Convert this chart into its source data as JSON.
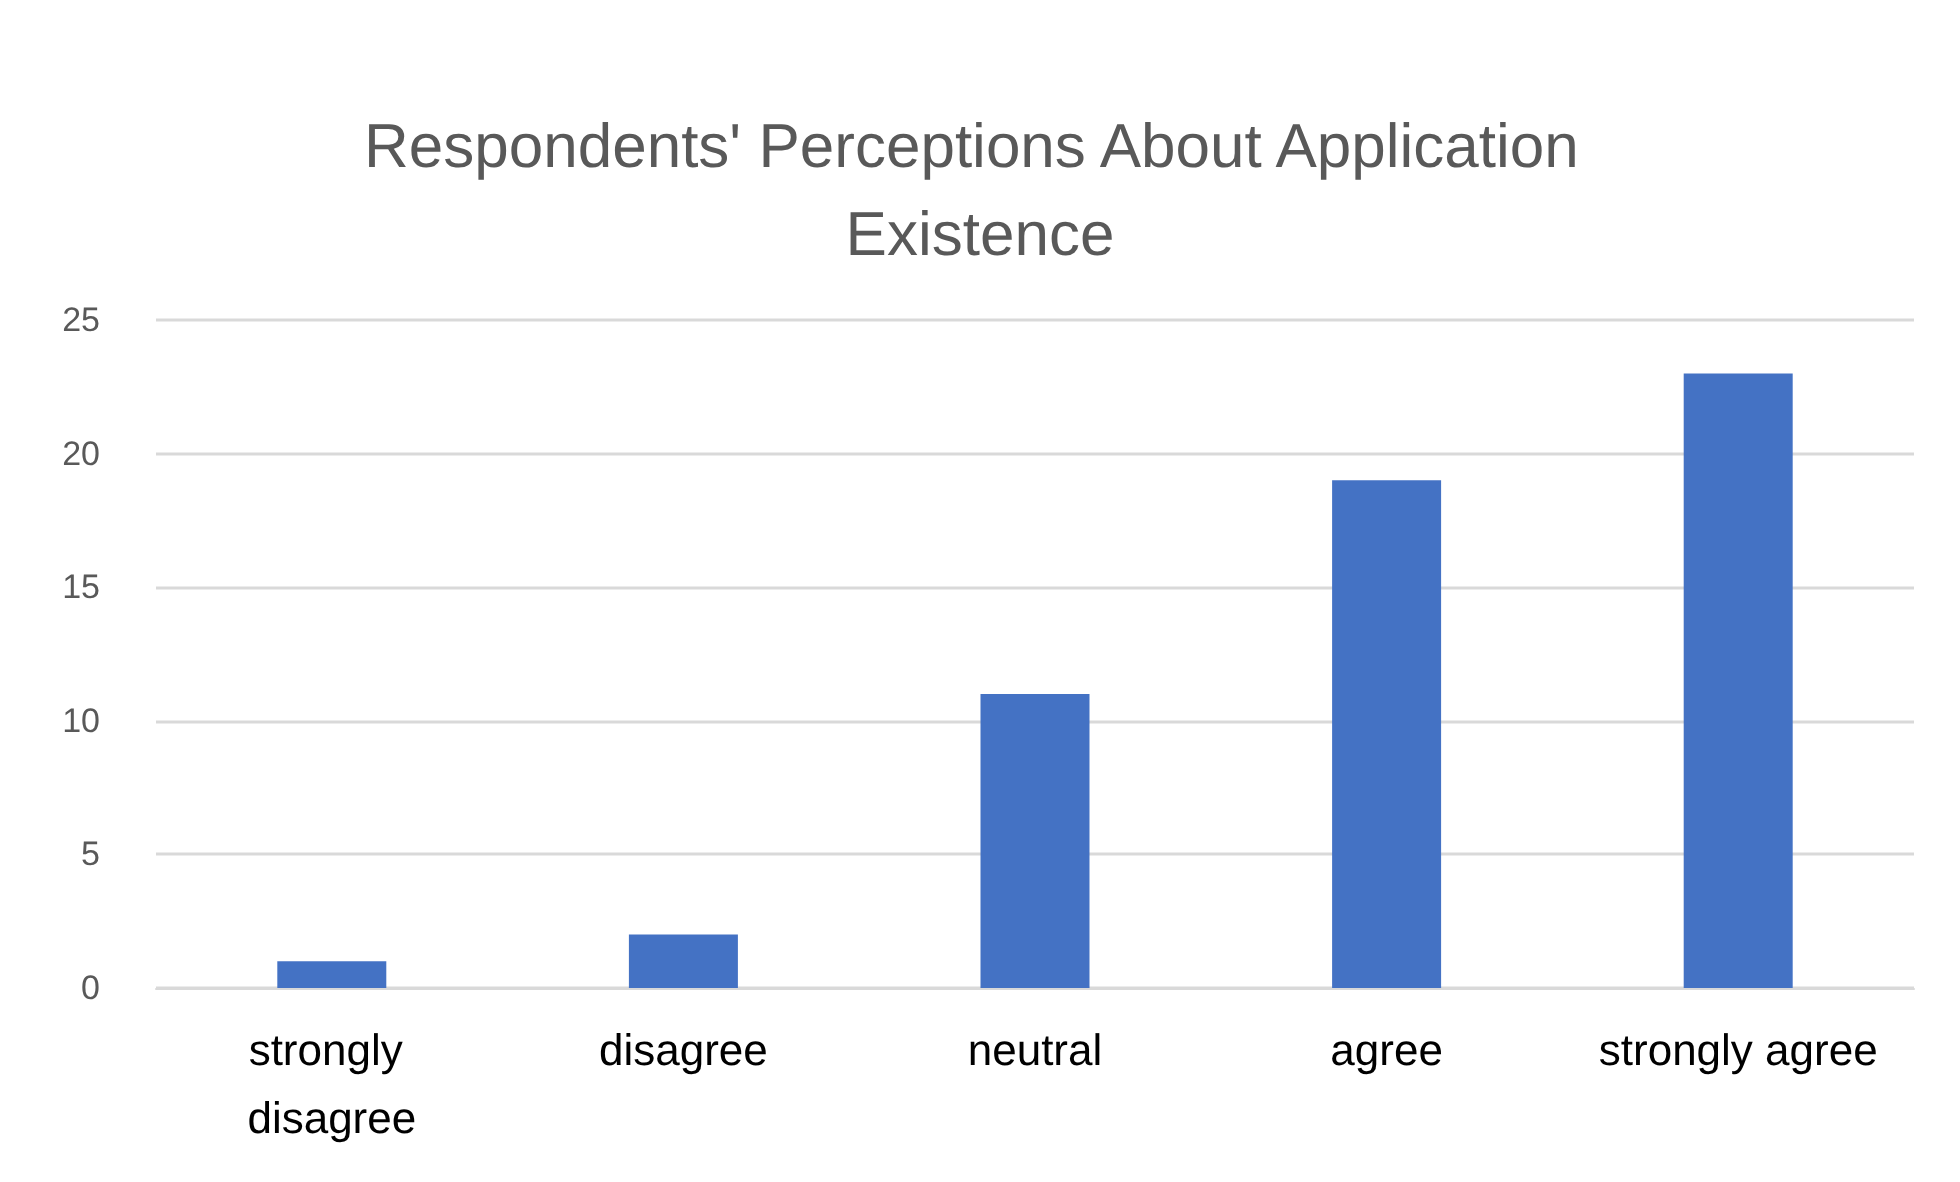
{
  "chart_data": {
    "type": "bar",
    "title": "Respondents' Perceptions About Application Existence",
    "categories": [
      "strongly disagree",
      "disagree",
      "neutral",
      "agree",
      "strongly agree"
    ],
    "values": [
      1,
      2,
      11,
      19,
      23
    ],
    "color": "#4472c4",
    "ylim": [
      0,
      25
    ],
    "yticks": [
      0,
      5,
      10,
      15,
      20,
      25
    ],
    "grid": "y"
  }
}
